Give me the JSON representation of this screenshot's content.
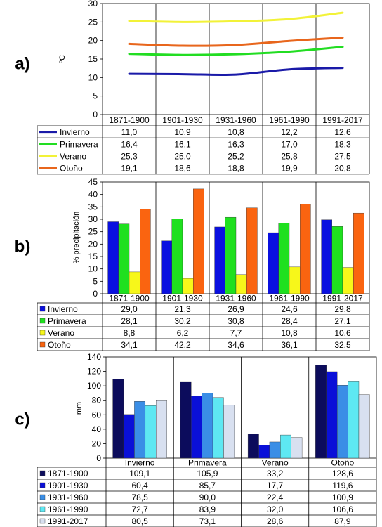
{
  "chart_data": [
    {
      "panel_label": "a)",
      "type": "line",
      "ylabel": "ºC",
      "ylim": [
        0,
        30
      ],
      "yticks": [
        0,
        5,
        10,
        15,
        20,
        25,
        30
      ],
      "categories": [
        "1871-1900",
        "1901-1930",
        "1931-1960",
        "1961-1990",
        "1991-2017"
      ],
      "grid": "vertical category dividers only",
      "legend": "data table below the plot",
      "series": [
        {
          "name": "Invierno",
          "color": "#1a1aa8",
          "values": [
            11.0,
            10.9,
            10.8,
            12.2,
            12.6
          ],
          "labels": [
            "11,0",
            "10,9",
            "10,8",
            "12,2",
            "12,6"
          ]
        },
        {
          "name": "Primavera",
          "color": "#22dd22",
          "values": [
            16.4,
            16.1,
            16.3,
            17.0,
            18.3
          ],
          "labels": [
            "16,4",
            "16,1",
            "16,3",
            "17,0",
            "18,3"
          ]
        },
        {
          "name": "Verano",
          "color": "#f2f238",
          "values": [
            25.3,
            25.0,
            25.2,
            25.8,
            27.5
          ],
          "labels": [
            "25,3",
            "25,0",
            "25,2",
            "25,8",
            "27,5"
          ]
        },
        {
          "name": "Otoño",
          "color": "#e8661c",
          "values": [
            19.1,
            18.6,
            18.8,
            19.9,
            20.8
          ],
          "labels": [
            "19,1",
            "18,6",
            "18,8",
            "19,9",
            "20,8"
          ]
        }
      ]
    },
    {
      "panel_label": "b)",
      "type": "bar",
      "ylabel": "% precipitación",
      "ylim": [
        0,
        45
      ],
      "yticks": [
        0,
        5,
        10,
        15,
        20,
        25,
        30,
        35,
        40,
        45
      ],
      "categories": [
        "1871-1900",
        "1901-1930",
        "1931-1960",
        "1961-1990",
        "1991-2017"
      ],
      "grid": "vertical category dividers only",
      "legend": "data table below the plot",
      "series": [
        {
          "name": "Invierno",
          "color": "#0a10e0",
          "values": [
            29.0,
            21.3,
            26.9,
            24.6,
            29.8
          ],
          "labels": [
            "29,0",
            "21,3",
            "26,9",
            "24,6",
            "29,8"
          ]
        },
        {
          "name": "Primavera",
          "color": "#1fe01f",
          "values": [
            28.1,
            30.2,
            30.8,
            28.4,
            27.1
          ],
          "labels": [
            "28,1",
            "30,2",
            "30,8",
            "28,4",
            "27,1"
          ]
        },
        {
          "name": "Verano",
          "color": "#f7f71a",
          "values": [
            8.8,
            6.2,
            7.7,
            10.8,
            10.6
          ],
          "labels": [
            "8,8",
            "6,2",
            "7,7",
            "10,8",
            "10,6"
          ]
        },
        {
          "name": "Otoño",
          "color": "#fa6410",
          "values": [
            34.1,
            42.2,
            34.6,
            36.1,
            32.5
          ],
          "labels": [
            "34,1",
            "42,2",
            "34,6",
            "36,1",
            "32,5"
          ]
        }
      ]
    },
    {
      "panel_label": "c)",
      "type": "bar",
      "ylabel": "mm",
      "ylim": [
        0,
        140
      ],
      "yticks": [
        0,
        20,
        40,
        60,
        80,
        100,
        120,
        140
      ],
      "categories": [
        "Invierno",
        "Primavera",
        "Verano",
        "Otoño"
      ],
      "grid": "vertical category dividers only",
      "legend": "data table below the plot",
      "series": [
        {
          "name": "1871-1900",
          "color": "#0c0c5c",
          "values": [
            109.1,
            105.9,
            33.2,
            128.6
          ],
          "labels": [
            "109,1",
            "105,9",
            "33,2",
            "128,6"
          ]
        },
        {
          "name": "1901-1930",
          "color": "#0a10d8",
          "values": [
            60.4,
            85.7,
            17.7,
            119.6
          ],
          "labels": [
            "60,4",
            "85,7",
            "17,7",
            "119,6"
          ]
        },
        {
          "name": "1931-1960",
          "color": "#3a8ee6",
          "values": [
            78.5,
            90.0,
            22.4,
            100.9
          ],
          "labels": [
            "78,5",
            "90,0",
            "22,4",
            "100,9"
          ]
        },
        {
          "name": "1961-1990",
          "color": "#5ee8f2",
          "values": [
            72.7,
            83.9,
            32.0,
            106.6
          ],
          "labels": [
            "72,7",
            "83,9",
            "32,0",
            "106,6"
          ]
        },
        {
          "name": "1991-2017",
          "color": "#d8e0f0",
          "values": [
            80.5,
            73.1,
            28.6,
            87.9
          ],
          "labels": [
            "80,5",
            "73,1",
            "28,6",
            "87,9"
          ]
        }
      ]
    }
  ]
}
